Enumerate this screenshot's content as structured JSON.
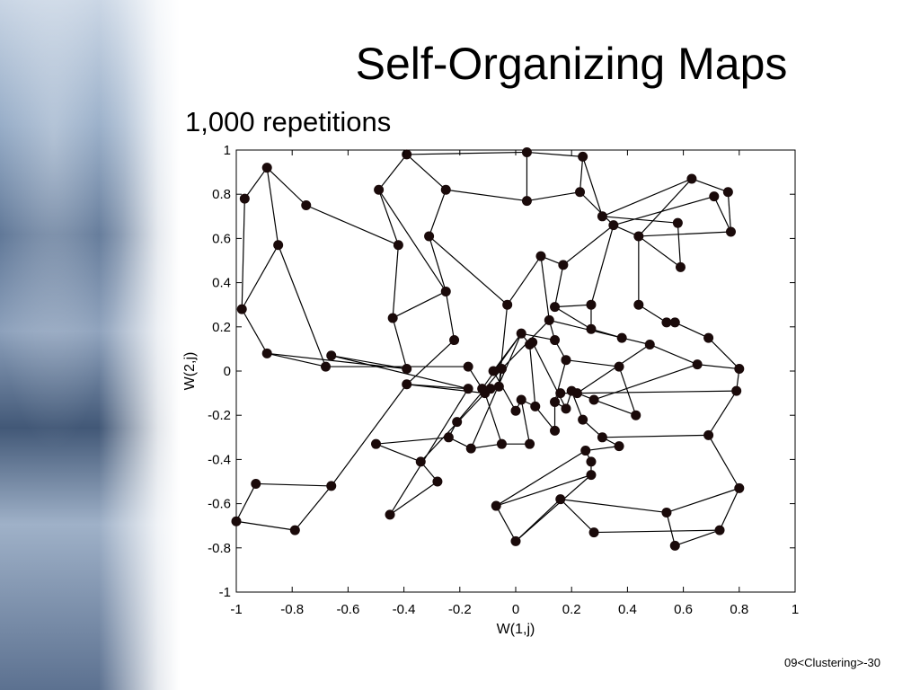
{
  "slide": {
    "title": "Self-Organizing Maps",
    "subtitle": "1,000 repetitions",
    "footer": "09<Clustering>-30"
  },
  "chart_data": {
    "type": "scatter",
    "xlabel": "W(1,j)",
    "ylabel": "W(2,j)",
    "xlim": [
      -1,
      1
    ],
    "ylim": [
      -1,
      1
    ],
    "x_ticks": [
      "-1",
      "-0.8",
      "-0.6",
      "-0.4",
      "-0.2",
      "0",
      "0.2",
      "0.4",
      "0.6",
      "0.8",
      "1"
    ],
    "y_ticks": [
      "1",
      "0.8",
      "0.6",
      "0.4",
      "0.2",
      "0",
      "-0.2",
      "-0.4",
      "-0.6",
      "-0.8",
      "-1"
    ],
    "grid": false,
    "nodes": [
      [
        -0.97,
        0.78
      ],
      [
        -0.89,
        0.92
      ],
      [
        -0.75,
        0.75
      ],
      [
        -0.85,
        0.57
      ],
      [
        -0.98,
        0.28
      ],
      [
        -0.89,
        0.08
      ],
      [
        -0.68,
        0.02
      ],
      [
        -0.66,
        0.07
      ],
      [
        -0.39,
        0.01
      ],
      [
        -0.39,
        -0.06
      ],
      [
        -0.39,
        0.98
      ],
      [
        -0.49,
        0.82
      ],
      [
        -0.42,
        0.57
      ],
      [
        -0.44,
        0.24
      ],
      [
        -0.25,
        0.36
      ],
      [
        -0.31,
        0.61
      ],
      [
        -0.25,
        0.82
      ],
      [
        -0.22,
        0.14
      ],
      [
        -0.17,
        0.02
      ],
      [
        -0.17,
        -0.08
      ],
      [
        0.04,
        0.99
      ],
      [
        0.04,
        0.77
      ],
      [
        0.24,
        0.97
      ],
      [
        0.23,
        0.81
      ],
      [
        0.31,
        0.7
      ],
      [
        0.63,
        0.87
      ],
      [
        0.71,
        0.79
      ],
      [
        0.76,
        0.81
      ],
      [
        0.77,
        0.63
      ],
      [
        0.58,
        0.67
      ],
      [
        0.59,
        0.47
      ],
      [
        0.44,
        0.61
      ],
      [
        0.35,
        0.66
      ],
      [
        0.17,
        0.48
      ],
      [
        0.09,
        0.52
      ],
      [
        -0.03,
        0.3
      ],
      [
        0.14,
        0.29
      ],
      [
        0.27,
        0.3
      ],
      [
        0.44,
        0.3
      ],
      [
        0.54,
        0.22
      ],
      [
        0.57,
        0.22
      ],
      [
        0.69,
        0.15
      ],
      [
        0.48,
        0.12
      ],
      [
        0.38,
        0.15
      ],
      [
        0.27,
        0.19
      ],
      [
        0.12,
        0.23
      ],
      [
        0.14,
        0.14
      ],
      [
        0.02,
        0.17
      ],
      [
        0.05,
        0.12
      ],
      [
        0.06,
        0.13
      ],
      [
        0.18,
        0.05
      ],
      [
        0.37,
        0.02
      ],
      [
        0.65,
        0.03
      ],
      [
        0.8,
        0.01
      ],
      [
        0.79,
        -0.09
      ],
      [
        0.69,
        -0.29
      ],
      [
        0.8,
        -0.53
      ],
      [
        0.73,
        -0.72
      ],
      [
        0.57,
        -0.79
      ],
      [
        0.54,
        -0.64
      ],
      [
        0.28,
        -0.73
      ],
      [
        0.16,
        -0.58
      ],
      [
        0.0,
        -0.77
      ],
      [
        -0.07,
        -0.61
      ],
      [
        0.27,
        -0.47
      ],
      [
        0.27,
        -0.41
      ],
      [
        0.25,
        -0.36
      ],
      [
        0.37,
        -0.34
      ],
      [
        0.31,
        -0.3
      ],
      [
        0.43,
        -0.2
      ],
      [
        0.28,
        -0.13
      ],
      [
        0.24,
        -0.22
      ],
      [
        0.22,
        -0.1
      ],
      [
        0.2,
        -0.09
      ],
      [
        0.18,
        -0.17
      ],
      [
        0.16,
        -0.1
      ],
      [
        0.14,
        -0.14
      ],
      [
        0.14,
        -0.27
      ],
      [
        0.07,
        -0.16
      ],
      [
        0.02,
        -0.13
      ],
      [
        0.0,
        -0.18
      ],
      [
        -0.11,
        -0.1
      ],
      [
        -0.12,
        -0.08
      ],
      [
        -0.09,
        -0.08
      ],
      [
        -0.06,
        -0.07
      ],
      [
        -0.08,
        0.0
      ],
      [
        -0.05,
        0.01
      ],
      [
        -0.21,
        -0.23
      ],
      [
        -0.24,
        -0.3
      ],
      [
        -0.16,
        -0.35
      ],
      [
        -0.05,
        -0.33
      ],
      [
        0.05,
        -0.33
      ],
      [
        -0.5,
        -0.33
      ],
      [
        -0.34,
        -0.41
      ],
      [
        -0.28,
        -0.5
      ],
      [
        -0.45,
        -0.65
      ],
      [
        -0.66,
        -0.52
      ],
      [
        -0.93,
        -0.51
      ],
      [
        -1.0,
        -0.68
      ],
      [
        -0.79,
        -0.72
      ]
    ],
    "edges": [
      [
        0,
        1
      ],
      [
        1,
        2
      ],
      [
        1,
        3
      ],
      [
        0,
        4
      ],
      [
        3,
        4
      ],
      [
        2,
        12
      ],
      [
        3,
        6
      ],
      [
        4,
        5
      ],
      [
        5,
        6
      ],
      [
        5,
        8
      ],
      [
        6,
        18
      ],
      [
        7,
        8
      ],
      [
        7,
        19
      ],
      [
        8,
        13
      ],
      [
        9,
        19
      ],
      [
        9,
        17
      ],
      [
        10,
        11
      ],
      [
        10,
        20
      ],
      [
        10,
        16
      ],
      [
        11,
        12
      ],
      [
        11,
        14
      ],
      [
        12,
        13
      ],
      [
        13,
        14
      ],
      [
        14,
        15
      ],
      [
        15,
        16
      ],
      [
        14,
        17
      ],
      [
        15,
        35
      ],
      [
        16,
        21
      ],
      [
        20,
        21
      ],
      [
        20,
        22
      ],
      [
        22,
        23
      ],
      [
        21,
        23
      ],
      [
        22,
        24
      ],
      [
        23,
        32
      ],
      [
        24,
        25
      ],
      [
        24,
        29
      ],
      [
        25,
        31
      ],
      [
        25,
        27
      ],
      [
        26,
        32
      ],
      [
        26,
        28
      ],
      [
        27,
        28
      ],
      [
        29,
        30
      ],
      [
        28,
        31
      ],
      [
        31,
        30
      ],
      [
        31,
        32
      ],
      [
        32,
        33
      ],
      [
        33,
        34
      ],
      [
        33,
        36
      ],
      [
        32,
        37
      ],
      [
        31,
        38
      ],
      [
        34,
        35
      ],
      [
        34,
        45
      ],
      [
        35,
        84
      ],
      [
        36,
        37
      ],
      [
        37,
        44
      ],
      [
        38,
        39
      ],
      [
        39,
        40
      ],
      [
        40,
        41
      ],
      [
        41,
        53
      ],
      [
        42,
        43
      ],
      [
        42,
        52
      ],
      [
        43,
        44
      ],
      [
        44,
        36
      ],
      [
        45,
        46
      ],
      [
        46,
        47
      ],
      [
        47,
        48
      ],
      [
        48,
        49
      ],
      [
        47,
        85
      ],
      [
        46,
        50
      ],
      [
        50,
        51
      ],
      [
        51,
        69
      ],
      [
        52,
        53
      ],
      [
        53,
        54
      ],
      [
        54,
        55
      ],
      [
        55,
        56
      ],
      [
        56,
        57
      ],
      [
        57,
        58
      ],
      [
        58,
        59
      ],
      [
        59,
        56
      ],
      [
        59,
        61
      ],
      [
        61,
        60
      ],
      [
        60,
        57
      ],
      [
        61,
        62
      ],
      [
        62,
        63
      ],
      [
        63,
        64
      ],
      [
        64,
        65
      ],
      [
        65,
        66
      ],
      [
        66,
        67
      ],
      [
        67,
        68
      ],
      [
        68,
        55
      ],
      [
        69,
        70
      ],
      [
        70,
        52
      ],
      [
        71,
        68
      ],
      [
        71,
        73
      ],
      [
        72,
        70
      ],
      [
        72,
        75
      ],
      [
        73,
        74
      ],
      [
        74,
        76
      ],
      [
        75,
        76
      ],
      [
        76,
        77
      ],
      [
        77,
        78
      ],
      [
        78,
        79
      ],
      [
        79,
        80
      ],
      [
        80,
        85
      ],
      [
        81,
        82
      ],
      [
        81,
        83
      ],
      [
        82,
        83
      ],
      [
        83,
        84
      ],
      [
        84,
        86
      ],
      [
        86,
        87
      ],
      [
        87,
        88
      ],
      [
        88,
        89
      ],
      [
        89,
        90
      ],
      [
        90,
        91
      ],
      [
        91,
        79
      ],
      [
        88,
        92
      ],
      [
        92,
        93
      ],
      [
        93,
        94
      ],
      [
        94,
        95
      ],
      [
        95,
        19
      ],
      [
        96,
        97
      ],
      [
        96,
        9
      ],
      [
        97,
        98
      ],
      [
        98,
        99
      ],
      [
        99,
        96
      ],
      [
        9,
        81
      ],
      [
        18,
        82
      ],
      [
        82,
        47
      ],
      [
        49,
        74
      ],
      [
        48,
        78
      ],
      [
        50,
        76
      ],
      [
        72,
        42
      ],
      [
        63,
        66
      ],
      [
        62,
        64
      ],
      [
        90,
        81
      ],
      [
        93,
        81
      ],
      [
        45,
        86
      ],
      [
        47,
        89
      ],
      [
        54,
        72
      ],
      [
        43,
        45
      ]
    ]
  }
}
